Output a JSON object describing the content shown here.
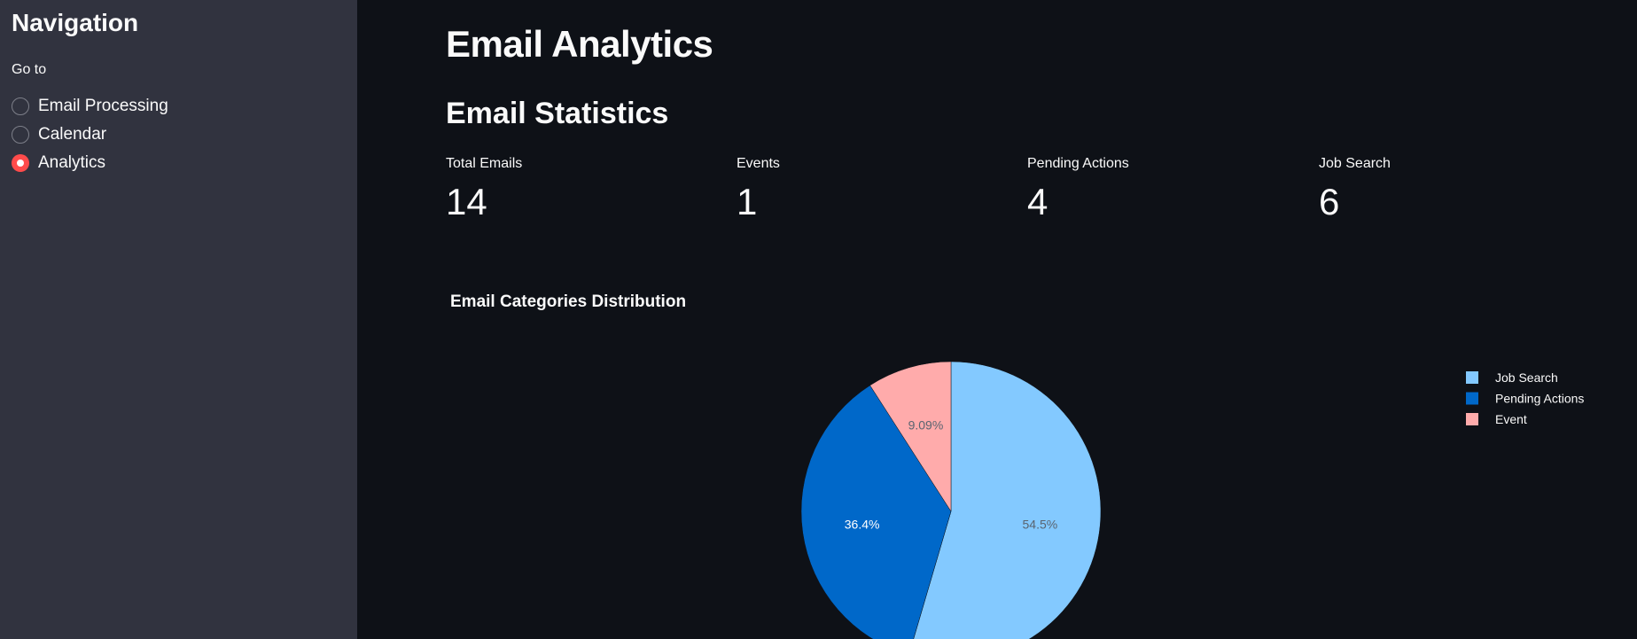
{
  "sidebar": {
    "title": "Navigation",
    "radio_label": "Go to",
    "options": [
      {
        "label": "Email Processing",
        "selected": false
      },
      {
        "label": "Calendar",
        "selected": false
      },
      {
        "label": "Analytics",
        "selected": true
      }
    ]
  },
  "main": {
    "title": "Email Analytics",
    "section_title": "Email Statistics",
    "metrics": [
      {
        "label": "Total Emails",
        "value": "14"
      },
      {
        "label": "Events",
        "value": "1"
      },
      {
        "label": "Pending Actions",
        "value": "4"
      },
      {
        "label": "Job Search",
        "value": "6"
      }
    ]
  },
  "colors": {
    "sidebar_bg": "#31333f",
    "main_bg": "#0e1117",
    "accent": "#ff4b4b"
  },
  "chart_data": {
    "type": "pie",
    "title": "Email Categories Distribution",
    "categories": [
      "Job Search",
      "Pending Actions",
      "Event"
    ],
    "values": [
      6,
      4,
      1
    ],
    "percent_labels": [
      "54.5%",
      "36.4%",
      "9.09%"
    ],
    "colors": [
      "#83c9ff",
      "#0068c9",
      "#ffabab"
    ],
    "label_colors": [
      "#5a6470",
      "#ffffff",
      "#5a6470"
    ],
    "legend": "top-right",
    "start_angle": 0,
    "direction": "clockwise"
  }
}
